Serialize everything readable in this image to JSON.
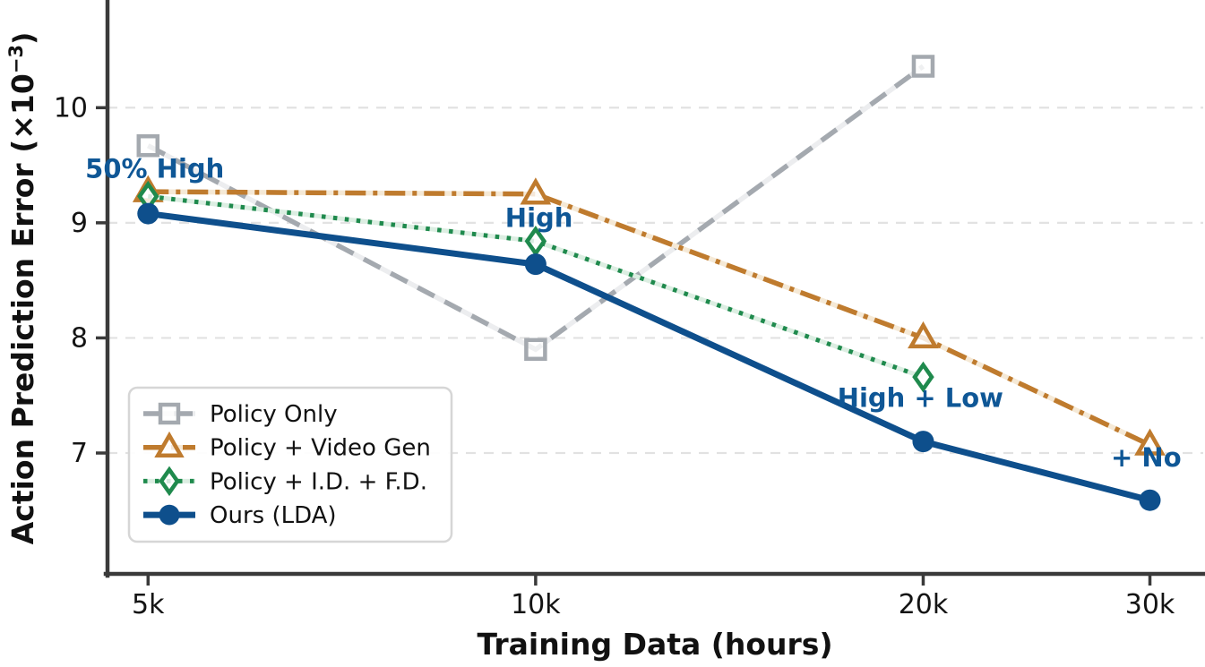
{
  "chart_data": {
    "type": "line",
    "title": "",
    "xlabel": "Training Data (hours)",
    "ylabel": "Action Prediction Error (×10⁻³)",
    "ylabel_parts": {
      "pre": "Action Prediction Error (×10",
      "sup": "−3",
      "post": ")"
    },
    "x": [
      5000,
      10000,
      20000,
      30000
    ],
    "x_tick_labels": [
      "5k",
      "10k",
      "20k",
      "30k"
    ],
    "x_scale": "log",
    "xlim": [
      4650,
      33000
    ],
    "ylim": [
      5.95,
      10.92
    ],
    "y_ticks": [
      7,
      8,
      9,
      10
    ],
    "grid": "horizontal-dashed",
    "legend_position": "lower-left",
    "series": [
      {
        "name": "Policy Only",
        "values": [
          9.67,
          7.9,
          10.36,
          null
        ],
        "color": "#a4a9af",
        "halo": "#ecedef",
        "dash": "dashed",
        "marker": "square"
      },
      {
        "name": "Policy + Video Gen",
        "values": [
          9.27,
          9.25,
          8.0,
          7.07
        ],
        "color": "#bf7b2e",
        "halo": "#f5e9d6",
        "dash": "dashdot",
        "marker": "triangle"
      },
      {
        "name": "Policy + I.D. + F.D.",
        "values": [
          9.23,
          8.84,
          7.66,
          null
        ],
        "color": "#1f8a4d",
        "halo": "#dceee2",
        "dash": "dotted",
        "marker": "diamond"
      },
      {
        "name": "Ours (LDA)",
        "values": [
          9.08,
          8.64,
          7.1,
          6.59
        ],
        "color": "#0e4f8c",
        "halo": null,
        "dash": "solid",
        "marker": "circle"
      }
    ],
    "annotations": [
      {
        "text": "50% High",
        "x": 5060,
        "y": 9.47
      },
      {
        "text": "High",
        "x": 10060,
        "y": 9.04
      },
      {
        "text": "High + Low",
        "x": 19900,
        "y": 7.48
      },
      {
        "text": "+ No",
        "x": 29800,
        "y": 6.96
      }
    ],
    "annotation_color": "#0f5796"
  }
}
